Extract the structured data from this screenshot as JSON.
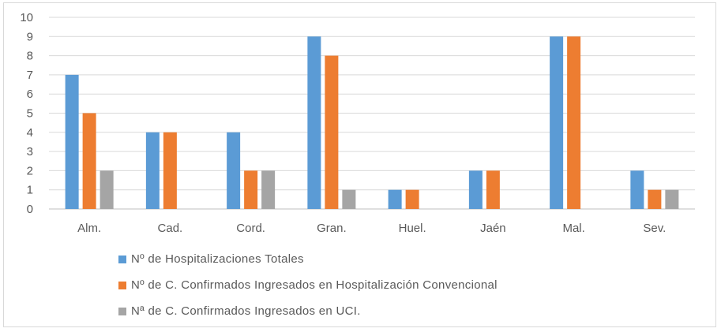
{
  "chart_data": {
    "type": "bar",
    "categories": [
      "Alm.",
      "Cad.",
      "Cord.",
      "Gran.",
      "Huel.",
      "Jaén",
      "Mal.",
      "Sev."
    ],
    "series": [
      {
        "name": "Nº de Hospitalizaciones Totales",
        "values": [
          7,
          4,
          4,
          9,
          1,
          2,
          9,
          2
        ],
        "color": "#5b9bd5"
      },
      {
        "name": "Nº de C. Confirmados Ingresados en Hospitalización Convencional",
        "values": [
          5,
          4,
          2,
          8,
          1,
          2,
          9,
          1
        ],
        "color": "#ed7d31"
      },
      {
        "name": "Nª de C. Confirmados Ingresados en UCI.",
        "values": [
          2,
          0,
          2,
          1,
          0,
          0,
          0,
          1
        ],
        "color": "#a5a5a5"
      }
    ],
    "yticks": [
      "0",
      "1",
      "2",
      "3",
      "4",
      "5",
      "6",
      "7",
      "8",
      "9",
      "10"
    ],
    "ylim": [
      0,
      10
    ],
    "grid": true,
    "legend_position": "bottom"
  }
}
